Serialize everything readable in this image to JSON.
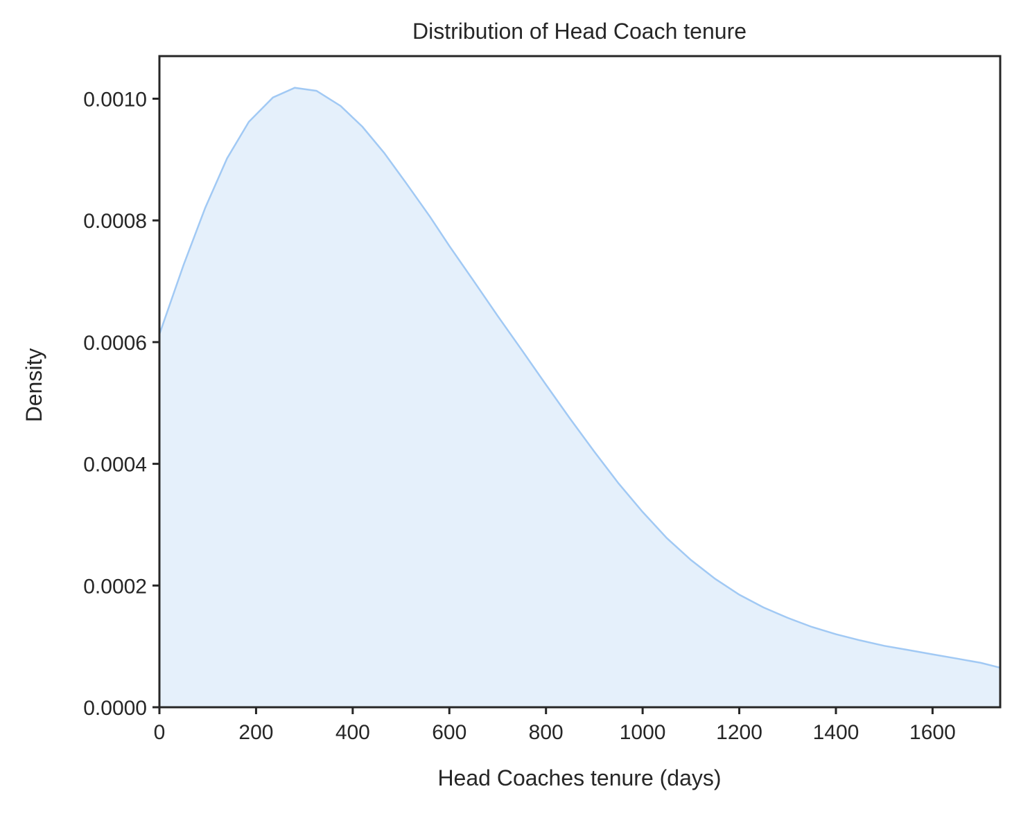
{
  "chart_data": {
    "type": "area",
    "title": "Distribution of Head Coach tenure",
    "xlabel": "Head Coaches tenure (days)",
    "ylabel": "Density",
    "xlim": [
      0,
      1740
    ],
    "ylim": [
      0,
      0.00107
    ],
    "xticks": [
      0,
      200,
      400,
      600,
      800,
      1000,
      1200,
      1400,
      1600
    ],
    "xtick_labels": [
      "0",
      "200",
      "400",
      "600",
      "800",
      "1000",
      "1200",
      "1400",
      "1600"
    ],
    "yticks": [
      0,
      0.0002,
      0.0004,
      0.0006,
      0.0008,
      0.001
    ],
    "ytick_labels": [
      "0.0000",
      "0.0002",
      "0.0004",
      "0.0006",
      "0.0008",
      "0.0010"
    ],
    "grid": false,
    "line_color": "#a1c9f4",
    "fill_color": "#e5f0fb",
    "series": [
      {
        "x": [
          0,
          50,
          95,
          140,
          185,
          235,
          280,
          325,
          375,
          420,
          465,
          510,
          560,
          600,
          650,
          700,
          750,
          800,
          850,
          900,
          950,
          1000,
          1050,
          1100,
          1150,
          1200,
          1250,
          1300,
          1350,
          1400,
          1450,
          1500,
          1550,
          1600,
          1650,
          1700,
          1740
        ],
        "y": [
          0.000613,
          0.000727,
          0.000821,
          0.000902,
          0.000962,
          0.001002,
          0.001018,
          0.001013,
          0.000988,
          0.000954,
          0.000911,
          0.000862,
          0.000806,
          0.000758,
          0.000701,
          0.000643,
          0.000587,
          0.00053,
          0.000474,
          0.00042,
          0.000368,
          0.000321,
          0.000278,
          0.000242,
          0.000211,
          0.000185,
          0.000164,
          0.000147,
          0.000132,
          0.00012,
          0.00011,
          0.000101,
          9.4e-05,
          8.7e-05,
          8e-05,
          7.3e-05,
          6.5e-05
        ]
      }
    ]
  }
}
